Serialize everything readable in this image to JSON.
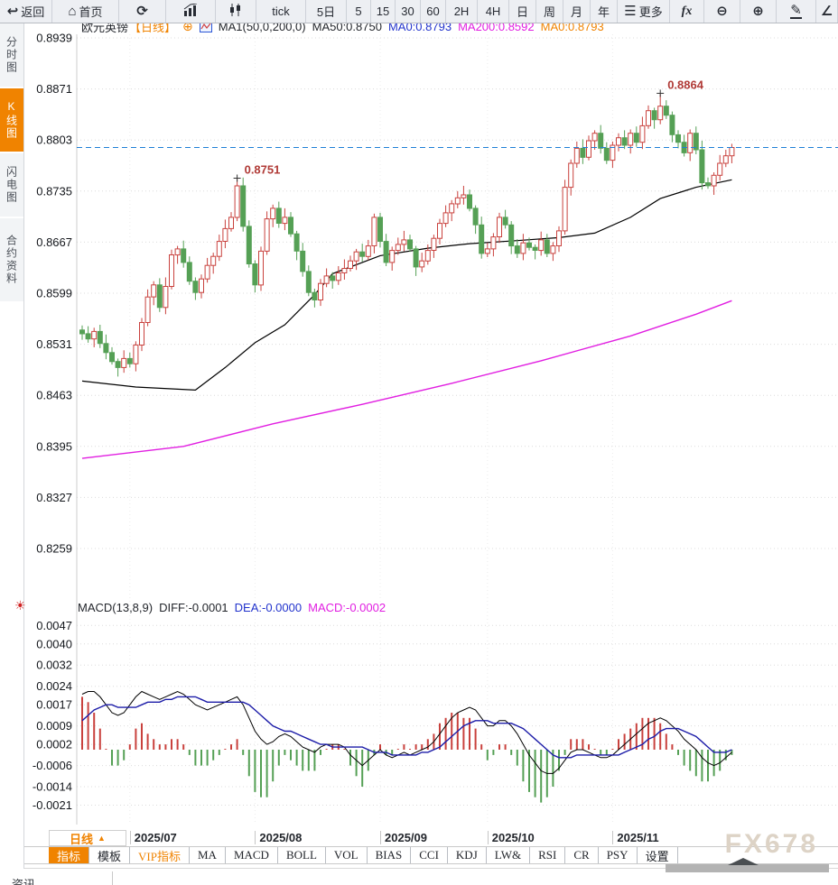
{
  "toolbar": {
    "items": [
      {
        "name": "back-button",
        "icon": "back-icon",
        "label": "返回"
      },
      {
        "name": "home-button",
        "icon": "home-icon",
        "label": "首页"
      },
      {
        "name": "refresh-button",
        "icon": "refresh-icon",
        "label": ""
      },
      {
        "name": "bar-stats-button",
        "icon": "bar-stats-icon",
        "label": ""
      },
      {
        "name": "candlestick-button",
        "icon": "candlestick-icon",
        "label": ""
      },
      {
        "name": "interval-tick-button",
        "icon": "",
        "label": "tick"
      },
      {
        "name": "interval-5d-button",
        "icon": "",
        "label": "5日"
      },
      {
        "name": "interval-5-button",
        "icon": "",
        "label": "5"
      },
      {
        "name": "interval-15-button",
        "icon": "",
        "label": "15"
      },
      {
        "name": "interval-30-button",
        "icon": "",
        "label": "30"
      },
      {
        "name": "interval-60-button",
        "icon": "",
        "label": "60"
      },
      {
        "name": "interval-2h-button",
        "icon": "",
        "label": "2H"
      },
      {
        "name": "interval-4h-button",
        "icon": "",
        "label": "4H"
      },
      {
        "name": "interval-day-button",
        "icon": "",
        "label": "日"
      },
      {
        "name": "interval-week-button",
        "icon": "",
        "label": "周"
      },
      {
        "name": "interval-month-button",
        "icon": "",
        "label": "月"
      },
      {
        "name": "interval-year-button",
        "icon": "",
        "label": "年"
      },
      {
        "name": "more-button",
        "icon": "menu-icon",
        "label": "更多"
      },
      {
        "name": "fx-indicators-button",
        "icon": "",
        "label": "fx"
      },
      {
        "name": "zoom-out-button",
        "icon": "zoom-out-icon",
        "label": ""
      },
      {
        "name": "zoom-in-button",
        "icon": "zoom-in-icon",
        "label": ""
      },
      {
        "name": "draw-button",
        "icon": "draw-icon",
        "label": ""
      },
      {
        "name": "angle-button",
        "icon": "angle-icon",
        "label": ""
      }
    ]
  },
  "sidebar": {
    "tabs": [
      {
        "name": "sidebar-tab-time-chart",
        "label": "分时图",
        "active": false
      },
      {
        "name": "sidebar-tab-kline-chart",
        "label": "K线图",
        "active": true
      },
      {
        "name": "sidebar-tab-lightning-chart",
        "label": "闪电图",
        "active": false
      },
      {
        "name": "sidebar-tab-contract-info",
        "label": "合约资料",
        "active": false
      }
    ]
  },
  "chart_header": {
    "symbol": "欧元英镑",
    "period_tag": "【日线】",
    "ma_config": "MA1(50,0,200,0)",
    "ma50": "MA50:0.8750",
    "ma0_short": "MA0:0.8793",
    "ma200": "MA200:0.8592",
    "ma0_long": "MA0:0.8793"
  },
  "macd_header": {
    "name": "MACD(13,8,9)",
    "diff": "DIFF:-0.0001",
    "dea": "DEA:-0.0000",
    "macd": "MACD:-0.0002"
  },
  "bottom": {
    "period_selector": "日线",
    "watermark": "FX678",
    "indicator_tabs": [
      {
        "name": "tab-indicator",
        "label": "指标",
        "active": true,
        "vip": false
      },
      {
        "name": "tab-template",
        "label": "模板",
        "active": false,
        "vip": false
      },
      {
        "name": "tab-vip-indicator",
        "label": "VIP指标",
        "active": false,
        "vip": true
      },
      {
        "name": "tab-ma",
        "label": "MA",
        "active": false,
        "vip": false
      },
      {
        "name": "tab-macd",
        "label": "MACD",
        "active": false,
        "vip": false
      },
      {
        "name": "tab-boll",
        "label": "BOLL",
        "active": false,
        "vip": false
      },
      {
        "name": "tab-vol",
        "label": "VOL",
        "active": false,
        "vip": false
      },
      {
        "name": "tab-bias",
        "label": "BIAS",
        "active": false,
        "vip": false
      },
      {
        "name": "tab-cci",
        "label": "CCI",
        "active": false,
        "vip": false
      },
      {
        "name": "tab-kdj",
        "label": "KDJ",
        "active": false,
        "vip": false
      },
      {
        "name": "tab-lw",
        "label": "LW&",
        "active": false,
        "vip": false
      },
      {
        "name": "tab-rsi",
        "label": "RSI",
        "active": false,
        "vip": false
      },
      {
        "name": "tab-cr",
        "label": "CR",
        "active": false,
        "vip": false
      },
      {
        "name": "tab-psy",
        "label": "PSY",
        "active": false,
        "vip": false
      },
      {
        "name": "tab-settings",
        "label": "设置",
        "active": false,
        "vip": false
      }
    ]
  },
  "footer": {
    "news_label": "资讯"
  },
  "colors": {
    "accent_orange": "#f08300",
    "candle_up": "#c9413d",
    "candle_down": "#55a055",
    "ma50_line": "#000000",
    "ma200_line": "#e11ee1",
    "diff_line": "#000000",
    "dea_line": "#1c1ca8",
    "price_line": "#1e7fd6",
    "annotation_text": "#b03a36",
    "blue_text": "#2233cc",
    "magenta_text": "#e11ee1",
    "watermark": "#ddd3c6"
  },
  "chart_data": {
    "type": "candlestick",
    "symbol": "欧元英镑",
    "period": "日线",
    "unit": "price and macd values are in 1e-4 units; divide by 10000",
    "grid": true,
    "y_ticks_main": [
      8939,
      8871,
      8803,
      8735,
      8667,
      8599,
      8531,
      8463,
      8395,
      8327,
      8259
    ],
    "current_price": 8793,
    "annotations": [
      {
        "text": "0.8751",
        "index": 26
      },
      {
        "text": "0.8864",
        "index": 97
      }
    ],
    "x_ticks": [
      {
        "label": "2025/07",
        "index": 8
      },
      {
        "label": "2025/08",
        "index": 29
      },
      {
        "label": "2025/09",
        "index": 50
      },
      {
        "label": "2025/10",
        "index": 68
      },
      {
        "label": "2025/11",
        "index": 89
      }
    ],
    "candles_ohlc": [
      [
        8550,
        8556,
        8537,
        8545
      ],
      [
        8545,
        8555,
        8533,
        8538
      ],
      [
        8538,
        8553,
        8527,
        8548
      ],
      [
        8548,
        8557,
        8526,
        8532
      ],
      [
        8532,
        8544,
        8511,
        8520
      ],
      [
        8520,
        8527,
        8504,
        8508
      ],
      [
        8508,
        8512,
        8488,
        8500
      ],
      [
        8500,
        8523,
        8493,
        8512
      ],
      [
        8512,
        8520,
        8500,
        8505
      ],
      [
        8505,
        8535,
        8495,
        8530
      ],
      [
        8530,
        8566,
        8522,
        8560
      ],
      [
        8560,
        8604,
        8555,
        8594
      ],
      [
        8594,
        8615,
        8583,
        8610
      ],
      [
        8610,
        8619,
        8574,
        8580
      ],
      [
        8580,
        8620,
        8571,
        8608
      ],
      [
        8608,
        8657,
        8604,
        8650
      ],
      [
        8650,
        8662,
        8638,
        8658
      ],
      [
        8658,
        8669,
        8633,
        8640
      ],
      [
        8640,
        8648,
        8610,
        8615
      ],
      [
        8615,
        8620,
        8590,
        8600
      ],
      [
        8600,
        8624,
        8592,
        8618
      ],
      [
        8618,
        8646,
        8613,
        8636
      ],
      [
        8636,
        8653,
        8625,
        8648
      ],
      [
        8648,
        8677,
        8642,
        8668
      ],
      [
        8668,
        8697,
        8659,
        8685
      ],
      [
        8685,
        8707,
        8681,
        8700
      ],
      [
        8700,
        8751,
        8695,
        8742
      ],
      [
        8742,
        8753,
        8681,
        8688
      ],
      [
        8688,
        8696,
        8633,
        8638
      ],
      [
        8638,
        8643,
        8600,
        8610
      ],
      [
        8610,
        8661,
        8602,
        8655
      ],
      [
        8655,
        8708,
        8650,
        8698
      ],
      [
        8698,
        8717,
        8687,
        8712
      ],
      [
        8712,
        8721,
        8686,
        8692
      ],
      [
        8692,
        8712,
        8683,
        8700
      ],
      [
        8700,
        8707,
        8674,
        8678
      ],
      [
        8678,
        8682,
        8643,
        8655
      ],
      [
        8655,
        8666,
        8621,
        8628
      ],
      [
        8628,
        8636,
        8595,
        8600
      ],
      [
        8600,
        8605,
        8580,
        8590
      ],
      [
        8590,
        8618,
        8582,
        8612
      ],
      [
        8612,
        8632,
        8607,
        8622
      ],
      [
        8622,
        8627,
        8605,
        8616
      ],
      [
        8616,
        8635,
        8610,
        8626
      ],
      [
        8626,
        8644,
        8617,
        8632
      ],
      [
        8632,
        8649,
        8628,
        8642
      ],
      [
        8642,
        8658,
        8630,
        8654
      ],
      [
        8654,
        8665,
        8641,
        8648
      ],
      [
        8648,
        8670,
        8643,
        8662
      ],
      [
        8662,
        8705,
        8652,
        8700
      ],
      [
        8700,
        8706,
        8660,
        8668
      ],
      [
        8668,
        8678,
        8635,
        8640
      ],
      [
        8640,
        8661,
        8629,
        8656
      ],
      [
        8656,
        8673,
        8650,
        8664
      ],
      [
        8664,
        8682,
        8655,
        8670
      ],
      [
        8670,
        8677,
        8654,
        8658
      ],
      [
        8658,
        8662,
        8622,
        8634
      ],
      [
        8634,
        8653,
        8627,
        8642
      ],
      [
        8642,
        8664,
        8637,
        8656
      ],
      [
        8656,
        8677,
        8646,
        8672
      ],
      [
        8672,
        8698,
        8664,
        8692
      ],
      [
        8692,
        8716,
        8687,
        8706
      ],
      [
        8706,
        8723,
        8695,
        8718
      ],
      [
        8718,
        8735,
        8712,
        8726
      ],
      [
        8726,
        8742,
        8717,
        8730
      ],
      [
        8730,
        8737,
        8708,
        8712
      ],
      [
        8712,
        8716,
        8678,
        8690
      ],
      [
        8690,
        8701,
        8645,
        8652
      ],
      [
        8652,
        8666,
        8647,
        8658
      ],
      [
        8658,
        8679,
        8648,
        8674
      ],
      [
        8674,
        8706,
        8666,
        8700
      ],
      [
        8700,
        8710,
        8685,
        8690
      ],
      [
        8690,
        8695,
        8651,
        8662
      ],
      [
        8662,
        8671,
        8646,
        8652
      ],
      [
        8652,
        8678,
        8643,
        8666
      ],
      [
        8666,
        8673,
        8656,
        8660
      ],
      [
        8660,
        8664,
        8644,
        8656
      ],
      [
        8656,
        8681,
        8649,
        8670
      ],
      [
        8670,
        8678,
        8647,
        8652
      ],
      [
        8652,
        8667,
        8642,
        8662
      ],
      [
        8662,
        8688,
        8654,
        8682
      ],
      [
        8682,
        8750,
        8677,
        8740
      ],
      [
        8740,
        8777,
        8729,
        8772
      ],
      [
        8772,
        8801,
        8766,
        8792
      ],
      [
        8792,
        8804,
        8771,
        8780
      ],
      [
        8780,
        8809,
        8776,
        8802
      ],
      [
        8802,
        8816,
        8790,
        8812
      ],
      [
        8812,
        8823,
        8785,
        8792
      ],
      [
        8792,
        8800,
        8771,
        8776
      ],
      [
        8776,
        8801,
        8766,
        8796
      ],
      [
        8796,
        8812,
        8788,
        8806
      ],
      [
        8806,
        8816,
        8791,
        8796
      ],
      [
        8796,
        8817,
        8785,
        8812
      ],
      [
        8812,
        8821,
        8794,
        8800
      ],
      [
        8800,
        8834,
        8791,
        8822
      ],
      [
        8822,
        8849,
        8818,
        8842
      ],
      [
        8842,
        8846,
        8818,
        8830
      ],
      [
        8830,
        8864,
        8824,
        8848
      ],
      [
        8848,
        8856,
        8831,
        8836
      ],
      [
        8836,
        8841,
        8800,
        8810
      ],
      [
        8810,
        8816,
        8792,
        8800
      ],
      [
        8800,
        8810,
        8781,
        8786
      ],
      [
        8786,
        8817,
        8775,
        8812
      ],
      [
        8812,
        8821,
        8784,
        8790
      ],
      [
        8790,
        8802,
        8737,
        8746
      ],
      [
        8746,
        8753,
        8738,
        8742
      ],
      [
        8742,
        8760,
        8730,
        8756
      ],
      [
        8756,
        8783,
        8749,
        8772
      ],
      [
        8772,
        8790,
        8767,
        8782
      ],
      [
        8782,
        8798,
        8772,
        8793
      ]
    ],
    "ma50_waypoints": [
      [
        0,
        8482
      ],
      [
        9,
        8474
      ],
      [
        19,
        8470
      ],
      [
        24,
        8500
      ],
      [
        29,
        8533
      ],
      [
        34,
        8557
      ],
      [
        39,
        8597
      ],
      [
        42,
        8625
      ],
      [
        50,
        8649
      ],
      [
        58,
        8659
      ],
      [
        65,
        8665
      ],
      [
        73,
        8669
      ],
      [
        80,
        8673
      ],
      [
        86,
        8679
      ],
      [
        92,
        8700
      ],
      [
        97,
        8725
      ],
      [
        103,
        8740
      ],
      [
        109,
        8750
      ]
    ],
    "ma200_waypoints": [
      [
        0,
        8379
      ],
      [
        17,
        8395
      ],
      [
        32,
        8425
      ],
      [
        47,
        8451
      ],
      [
        62,
        8479
      ],
      [
        77,
        8509
      ],
      [
        92,
        8542
      ],
      [
        103,
        8571
      ],
      [
        109,
        8589
      ]
    ],
    "macd": {
      "params": "13,8,9",
      "y_ticks": [
        47,
        40,
        32,
        24,
        17,
        9,
        2,
        -6,
        -14,
        -21
      ],
      "diff": [
        21,
        22,
        22,
        20,
        17,
        14,
        13,
        14,
        17,
        20,
        22,
        21,
        20,
        19,
        20,
        21,
        22,
        21,
        19,
        17,
        16,
        15,
        16,
        17,
        18,
        19,
        20,
        17,
        12,
        7,
        4,
        2,
        3,
        5,
        6,
        5,
        3,
        1,
        0,
        -1,
        1,
        2,
        2,
        2,
        1,
        -2,
        -4,
        -6,
        -4,
        -2,
        0,
        -2,
        -3,
        -2,
        -1,
        -2,
        -1,
        0,
        1,
        3,
        6,
        9,
        12,
        14,
        15,
        16,
        15,
        12,
        9,
        9,
        11,
        11,
        9,
        6,
        2,
        -2,
        -5,
        -8,
        -9,
        -9,
        -7,
        -4,
        -1,
        0,
        0,
        -1,
        -2,
        -3,
        -3,
        -2,
        0,
        2,
        4,
        6,
        8,
        10,
        11,
        12,
        11,
        9,
        7,
        4,
        2,
        0,
        -3,
        -5,
        -6,
        -5,
        -3,
        -1
      ],
      "dea": [
        11,
        13,
        15,
        16,
        17,
        17,
        16,
        16,
        16,
        16,
        17,
        18,
        18,
        18,
        19,
        19,
        20,
        20,
        20,
        20,
        19,
        18,
        18,
        18,
        18,
        18,
        18,
        18,
        17,
        15,
        13,
        11,
        9,
        8,
        7,
        7,
        6,
        5,
        4,
        3,
        2,
        2,
        1,
        1,
        1,
        1,
        1,
        1,
        0,
        -1,
        -1,
        -1,
        -2,
        -2,
        -2,
        -2,
        -2,
        -1,
        -1,
        0,
        1,
        3,
        5,
        7,
        9,
        10,
        11,
        11,
        11,
        10,
        10,
        10,
        10,
        9,
        8,
        6,
        4,
        2,
        0,
        -2,
        -3,
        -3,
        -3,
        -2,
        -2,
        -2,
        -2,
        -2,
        -2,
        -2,
        -2,
        -1,
        0,
        1,
        2,
        4,
        5,
        7,
        8,
        8,
        8,
        7,
        6,
        5,
        3,
        1,
        -1,
        -1,
        -1,
        0
      ],
      "hist": [
        20,
        18,
        14,
        8,
        0,
        -6,
        -6,
        -4,
        2,
        8,
        10,
        6,
        4,
        2,
        2,
        4,
        4,
        2,
        -2,
        -6,
        -6,
        -6,
        -4,
        -2,
        0,
        2,
        4,
        -2,
        -10,
        -16,
        -18,
        -18,
        -12,
        -6,
        -2,
        -4,
        -6,
        -8,
        -8,
        -8,
        -2,
        0,
        2,
        2,
        0,
        -6,
        -10,
        -14,
        -8,
        -2,
        2,
        -2,
        -2,
        0,
        2,
        0,
        2,
        2,
        4,
        6,
        10,
        12,
        14,
        14,
        12,
        12,
        8,
        2,
        -4,
        -2,
        2,
        2,
        -2,
        -6,
        -12,
        -16,
        -18,
        -20,
        -18,
        -14,
        -8,
        -2,
        4,
        4,
        4,
        2,
        0,
        -2,
        -2,
        0,
        4,
        6,
        8,
        10,
        12,
        12,
        12,
        10,
        6,
        2,
        -2,
        -6,
        -8,
        -10,
        -12,
        -12,
        -10,
        -8,
        -4,
        -2
      ]
    }
  }
}
